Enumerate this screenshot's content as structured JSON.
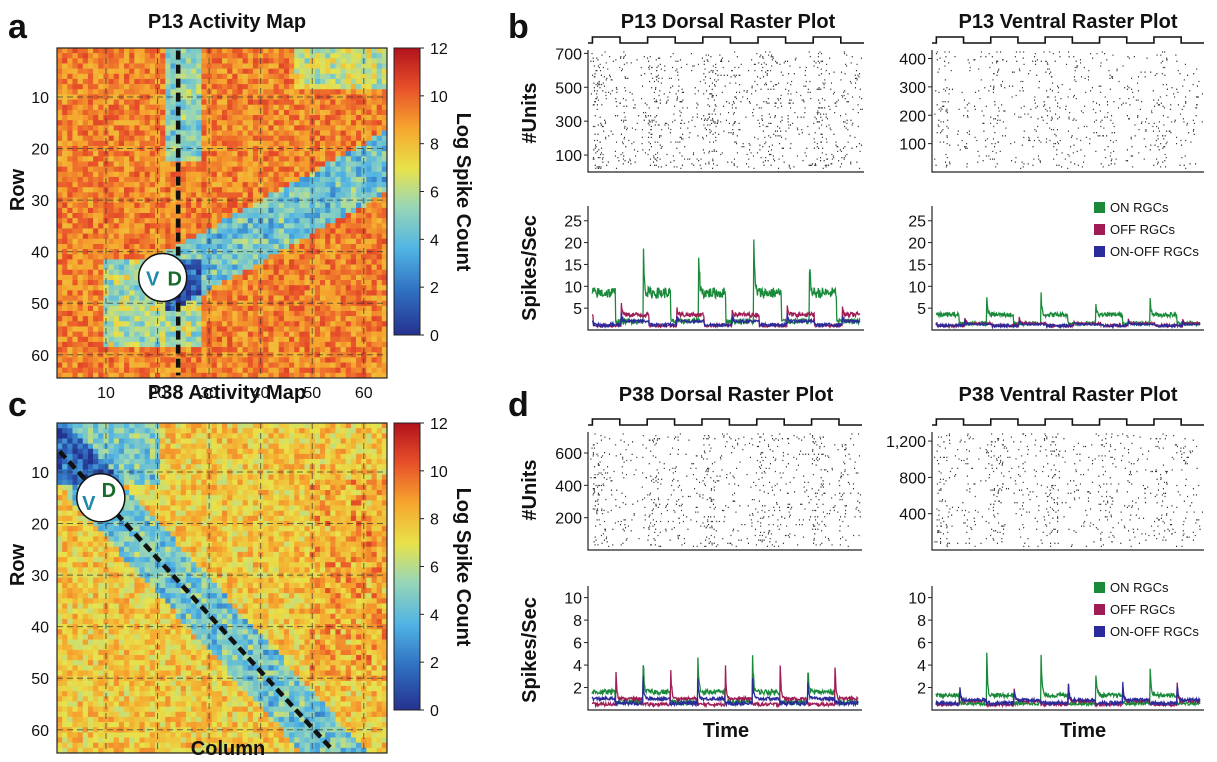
{
  "figure": {
    "colorbar_label": "Log Spike Count",
    "colorbar_ticks": [
      "12",
      "10",
      "8",
      "6",
      "4",
      "2",
      "0"
    ],
    "legend": {
      "on": "ON RGCs",
      "off": "OFF RGCs",
      "onoff": "ON-OFF RGCs",
      "colors": {
        "on": "#1a8a3a",
        "off": "#a01c55",
        "onoff": "#2b2a9a"
      }
    }
  },
  "chart_data": [
    {
      "panel": "a",
      "type": "heatmap",
      "title": "P13 Activity Map",
      "ylabel": "Row",
      "xlabel": "",
      "x_ticks": [
        "10",
        "20",
        "30",
        "40",
        "50",
        "60"
      ],
      "y_ticks": [
        "10",
        "20",
        "30",
        "40",
        "50",
        "60"
      ],
      "xlim": [
        1,
        64
      ],
      "ylim": [
        1,
        64
      ],
      "color_range": [
        0,
        12
      ],
      "grid": true,
      "marker": {
        "ventral": "V",
        "dorsal": "D",
        "col": 21,
        "row": 45
      },
      "dashed_line": {
        "from": [
          24,
          1
        ],
        "to": [
          24,
          64
        ]
      }
    },
    {
      "panel": "c",
      "type": "heatmap",
      "title": "P38 Activity Map",
      "ylabel": "Row",
      "xlabel": "Column",
      "x_ticks": [
        "10",
        "20",
        "30",
        "40",
        "50",
        "60"
      ],
      "y_ticks": [
        "10",
        "20",
        "30",
        "40",
        "50",
        "60"
      ],
      "xlim": [
        1,
        64
      ],
      "ylim": [
        1,
        64
      ],
      "color_range": [
        0,
        12
      ],
      "grid": true,
      "marker": {
        "ventral": "V",
        "dorsal": "D",
        "col": 9,
        "row": 15
      },
      "dashed_line": {
        "from": [
          1,
          6
        ],
        "to": [
          54,
          64
        ]
      }
    },
    {
      "panel": "b",
      "type": "raster",
      "title": "P13 Dorsal Raster Plot",
      "ylabel": "#Units",
      "y_ticks": [
        "700",
        "500",
        "300",
        "100"
      ],
      "y_values": [
        700,
        500,
        300,
        100
      ],
      "ylim": [
        0,
        720
      ],
      "stimulus_cycles": 5
    },
    {
      "panel": "b",
      "type": "raster",
      "title": "P13 Ventral Raster Plot",
      "ylabel": "",
      "y_ticks": [
        "400",
        "300",
        "200",
        "100"
      ],
      "y_values": [
        400,
        300,
        200,
        100
      ],
      "ylim": [
        0,
        430
      ],
      "stimulus_cycles": 5
    },
    {
      "panel": "b",
      "type": "line",
      "ylabel": "Spikes/Sec",
      "xlabel": "",
      "y_ticks": [
        "25",
        "20",
        "15",
        "10",
        "5"
      ],
      "y_values": [
        25,
        20,
        15,
        10,
        5
      ],
      "ylim": [
        0,
        27
      ],
      "legend": false,
      "cycles": 5,
      "series": [
        {
          "key": "on",
          "peak": 22,
          "base": 2.0,
          "plateau": 8.5,
          "phase": 0.0
        },
        {
          "key": "off",
          "peak": 6.5,
          "base": 1.0,
          "plateau": 3.5,
          "phase": 0.6
        },
        {
          "key": "onoff",
          "peak": 5.0,
          "base": 1.2,
          "plateau": 2.0,
          "phase": 0.6
        }
      ]
    },
    {
      "panel": "b",
      "type": "line",
      "ylabel": "",
      "xlabel": "",
      "y_ticks": [
        "25",
        "20",
        "15",
        "10",
        "5"
      ],
      "y_values": [
        25,
        20,
        15,
        10,
        5
      ],
      "ylim": [
        0,
        27
      ],
      "legend": true,
      "cycles": 5,
      "series": [
        {
          "key": "on",
          "peak": 9.5,
          "base": 1.5,
          "plateau": 3.5,
          "phase": 0.0
        },
        {
          "key": "off",
          "peak": 3.0,
          "base": 1.0,
          "plateau": 1.5,
          "phase": 0.6
        },
        {
          "key": "onoff",
          "peak": 2.5,
          "base": 1.0,
          "plateau": 1.3,
          "phase": 0.6
        }
      ]
    },
    {
      "panel": "d",
      "type": "raster",
      "title": "P38 Dorsal Raster Plot",
      "ylabel": "#Units",
      "y_ticks": [
        "600",
        "400",
        "200"
      ],
      "y_values": [
        600,
        400,
        200
      ],
      "ylim": [
        0,
        730
      ],
      "stimulus_cycles": 5
    },
    {
      "panel": "d",
      "type": "raster",
      "title": "P38 Ventral Raster Plot",
      "ylabel": "",
      "y_ticks": [
        "1,200",
        "800",
        "400"
      ],
      "y_values": [
        1200,
        800,
        400
      ],
      "ylim": [
        0,
        1300
      ],
      "stimulus_cycles": 5
    },
    {
      "panel": "d",
      "type": "line",
      "ylabel": "Spikes/Sec",
      "xlabel": "Time",
      "y_ticks": [
        "10",
        "8",
        "6",
        "4",
        "2"
      ],
      "y_values": [
        10,
        8,
        6,
        4,
        2
      ],
      "ylim": [
        0,
        10.5
      ],
      "legend": false,
      "cycles": 5,
      "series": [
        {
          "key": "on",
          "peak": 6.0,
          "base": 0.7,
          "plateau": 1.6,
          "phase": 0.0
        },
        {
          "key": "off",
          "peak": 6.0,
          "base": 0.5,
          "plateau": 1.0,
          "phase": 0.5
        },
        {
          "key": "onoff",
          "peak": 3.5,
          "base": 0.6,
          "plateau": 1.0,
          "phase": 0.0
        }
      ]
    },
    {
      "panel": "d",
      "type": "line",
      "ylabel": "",
      "xlabel": "Time",
      "y_ticks": [
        "10",
        "8",
        "6",
        "4",
        "2"
      ],
      "y_values": [
        10,
        8,
        6,
        4,
        2
      ],
      "ylim": [
        0,
        10.5
      ],
      "legend": true,
      "cycles": 5,
      "series": [
        {
          "key": "on",
          "peak": 6.3,
          "base": 0.6,
          "plateau": 1.3,
          "phase": 0.0
        },
        {
          "key": "off",
          "peak": 3.0,
          "base": 0.5,
          "plateau": 0.8,
          "phase": 0.5
        },
        {
          "key": "onoff",
          "peak": 3.0,
          "base": 0.6,
          "plateau": 0.9,
          "phase": 0.5
        }
      ]
    }
  ]
}
